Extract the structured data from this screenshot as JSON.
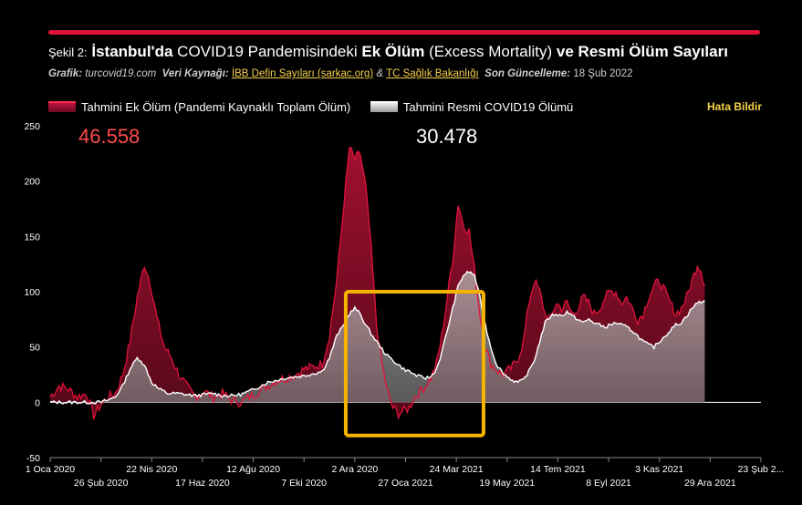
{
  "header": {
    "title_prefix": "Şekil 2:",
    "title_bold1": "İstanbul'da",
    "title_mid1": "COVID19 Pandemisindeki",
    "title_bold2": "Ek Ölüm",
    "title_mid2": "(Excess Mortality)",
    "title_bold3": "ve Resmi Ölüm Sayıları"
  },
  "subtitle": {
    "grafik_label": "Grafik:",
    "grafik_value": "turcovid19.com",
    "source_label": "Veri Kaynağı:",
    "source_link1": "İBB Defin Sayıları (sarkac.org)",
    "amp": "&",
    "source_link2": "TC Sağlık Bakanlığı",
    "updated_label": "Son Güncelleme:",
    "updated_value": "18 Şub 2022"
  },
  "legend": {
    "series1": "Tahmini Ek Ölüm (Pandemi Kaynaklı Toplam Ölüm)",
    "series2": "Tahmini Resmi COVID19 Ölümü",
    "report": "Hata Bildir"
  },
  "chart_data": {
    "type": "area",
    "totals": {
      "excess": "46.558",
      "official": "30.478"
    },
    "ylim": [
      -50,
      250
    ],
    "yticks": [
      -50,
      0,
      50,
      100,
      150,
      200,
      250
    ],
    "xticks_top": [
      "1 Oca 2020",
      "22 Nis 2020",
      "12 Ağu 2020",
      "2 Ara 2020",
      "24 Mar 2021",
      "14 Tem 2021",
      "3 Kas 2021",
      "23 Şub 2..."
    ],
    "xticks_bottom": [
      "26 Şub 2020",
      "17 Haz 2020",
      "7 Eki 2020",
      "27 Oca 2021",
      "19 May 2021",
      "8 Eyl 2021",
      "29 Ara 2021"
    ],
    "x_days_top": [
      0,
      112,
      224,
      336,
      448,
      560,
      672,
      784
    ],
    "x_days_bottom": [
      56,
      168,
      280,
      392,
      504,
      616,
      728
    ],
    "x_range_days": [
      0,
      784
    ],
    "highlight_box_days": [
      326,
      478
    ],
    "series": [
      {
        "name": "Tahmini Ek Ölüm (Pandemi Kaynaklı Toplam Ölüm)",
        "color": "#e0123a",
        "points": [
          [
            0,
            5
          ],
          [
            10,
            15
          ],
          [
            20,
            12
          ],
          [
            30,
            5
          ],
          [
            40,
            8
          ],
          [
            48,
            -12
          ],
          [
            56,
            -2
          ],
          [
            64,
            5
          ],
          [
            72,
            8
          ],
          [
            80,
            25
          ],
          [
            88,
            55
          ],
          [
            96,
            95
          ],
          [
            104,
            125
          ],
          [
            110,
            110
          ],
          [
            118,
            75
          ],
          [
            126,
            50
          ],
          [
            134,
            40
          ],
          [
            142,
            25
          ],
          [
            150,
            15
          ],
          [
            160,
            5
          ],
          [
            170,
            10
          ],
          [
            180,
            5
          ],
          [
            190,
            8
          ],
          [
            200,
            2
          ],
          [
            210,
            0
          ],
          [
            220,
            5
          ],
          [
            230,
            10
          ],
          [
            240,
            15
          ],
          [
            250,
            20
          ],
          [
            260,
            22
          ],
          [
            270,
            25
          ],
          [
            280,
            30
          ],
          [
            290,
            32
          ],
          [
            300,
            35
          ],
          [
            308,
            60
          ],
          [
            316,
            110
          ],
          [
            324,
            180
          ],
          [
            330,
            230
          ],
          [
            336,
            220
          ],
          [
            342,
            225
          ],
          [
            348,
            195
          ],
          [
            354,
            140
          ],
          [
            360,
            70
          ],
          [
            366,
            35
          ],
          [
            372,
            10
          ],
          [
            378,
            -5
          ],
          [
            384,
            -10
          ],
          [
            390,
            -8
          ],
          [
            396,
            -5
          ],
          [
            402,
            5
          ],
          [
            408,
            10
          ],
          [
            414,
            15
          ],
          [
            420,
            22
          ],
          [
            426,
            35
          ],
          [
            432,
            60
          ],
          [
            438,
            95
          ],
          [
            444,
            130
          ],
          [
            450,
            180
          ],
          [
            456,
            160
          ],
          [
            462,
            155
          ],
          [
            468,
            120
          ],
          [
            474,
            80
          ],
          [
            480,
            50
          ],
          [
            486,
            35
          ],
          [
            492,
            30
          ],
          [
            498,
            25
          ],
          [
            504,
            28
          ],
          [
            510,
            32
          ],
          [
            516,
            40
          ],
          [
            522,
            55
          ],
          [
            528,
            90
          ],
          [
            534,
            110
          ],
          [
            540,
            100
          ],
          [
            546,
            80
          ],
          [
            552,
            75
          ],
          [
            558,
            90
          ],
          [
            564,
            85
          ],
          [
            570,
            90
          ],
          [
            576,
            80
          ],
          [
            582,
            85
          ],
          [
            588,
            95
          ],
          [
            594,
            90
          ],
          [
            600,
            80
          ],
          [
            606,
            85
          ],
          [
            612,
            95
          ],
          [
            618,
            100
          ],
          [
            624,
            100
          ],
          [
            630,
            90
          ],
          [
            636,
            95
          ],
          [
            642,
            85
          ],
          [
            648,
            75
          ],
          [
            654,
            80
          ],
          [
            660,
            95
          ],
          [
            666,
            105
          ],
          [
            672,
            110
          ],
          [
            678,
            100
          ],
          [
            684,
            90
          ],
          [
            690,
            80
          ],
          [
            696,
            85
          ],
          [
            702,
            95
          ],
          [
            708,
            110
          ],
          [
            714,
            125
          ],
          [
            718,
            120
          ],
          [
            722,
            105
          ]
        ]
      },
      {
        "name": "Tahmini Resmi COVID19 Ölümü",
        "color": "#ffffff",
        "points": [
          [
            0,
            0
          ],
          [
            40,
            0
          ],
          [
            56,
            0
          ],
          [
            64,
            2
          ],
          [
            72,
            5
          ],
          [
            80,
            15
          ],
          [
            88,
            30
          ],
          [
            96,
            40
          ],
          [
            100,
            38
          ],
          [
            106,
            30
          ],
          [
            112,
            18
          ],
          [
            120,
            12
          ],
          [
            130,
            8
          ],
          [
            140,
            8
          ],
          [
            150,
            7
          ],
          [
            160,
            6
          ],
          [
            170,
            7
          ],
          [
            180,
            8
          ],
          [
            190,
            6
          ],
          [
            200,
            6
          ],
          [
            210,
            7
          ],
          [
            220,
            10
          ],
          [
            230,
            14
          ],
          [
            240,
            18
          ],
          [
            250,
            20
          ],
          [
            260,
            22
          ],
          [
            270,
            23
          ],
          [
            280,
            24
          ],
          [
            290,
            26
          ],
          [
            300,
            28
          ],
          [
            308,
            40
          ],
          [
            316,
            60
          ],
          [
            324,
            70
          ],
          [
            330,
            80
          ],
          [
            336,
            85
          ],
          [
            342,
            80
          ],
          [
            348,
            70
          ],
          [
            354,
            62
          ],
          [
            360,
            55
          ],
          [
            366,
            48
          ],
          [
            372,
            42
          ],
          [
            378,
            38
          ],
          [
            384,
            34
          ],
          [
            390,
            30
          ],
          [
            396,
            28
          ],
          [
            402,
            25
          ],
          [
            408,
            23
          ],
          [
            414,
            22
          ],
          [
            420,
            23
          ],
          [
            426,
            30
          ],
          [
            432,
            45
          ],
          [
            438,
            65
          ],
          [
            444,
            85
          ],
          [
            450,
            105
          ],
          [
            456,
            115
          ],
          [
            462,
            118
          ],
          [
            468,
            115
          ],
          [
            474,
            95
          ],
          [
            480,
            70
          ],
          [
            486,
            50
          ],
          [
            492,
            35
          ],
          [
            498,
            28
          ],
          [
            504,
            23
          ],
          [
            510,
            20
          ],
          [
            516,
            18
          ],
          [
            522,
            20
          ],
          [
            528,
            28
          ],
          [
            534,
            38
          ],
          [
            540,
            55
          ],
          [
            546,
            72
          ],
          [
            552,
            78
          ],
          [
            558,
            80
          ],
          [
            564,
            78
          ],
          [
            570,
            82
          ],
          [
            576,
            78
          ],
          [
            582,
            75
          ],
          [
            588,
            72
          ],
          [
            594,
            75
          ],
          [
            600,
            72
          ],
          [
            606,
            70
          ],
          [
            612,
            68
          ],
          [
            618,
            70
          ],
          [
            624,
            72
          ],
          [
            630,
            70
          ],
          [
            636,
            68
          ],
          [
            642,
            65
          ],
          [
            648,
            60
          ],
          [
            654,
            55
          ],
          [
            660,
            52
          ],
          [
            666,
            50
          ],
          [
            672,
            55
          ],
          [
            678,
            60
          ],
          [
            684,
            65
          ],
          [
            690,
            70
          ],
          [
            696,
            72
          ],
          [
            702,
            78
          ],
          [
            708,
            85
          ],
          [
            714,
            90
          ],
          [
            722,
            92
          ]
        ]
      }
    ]
  }
}
